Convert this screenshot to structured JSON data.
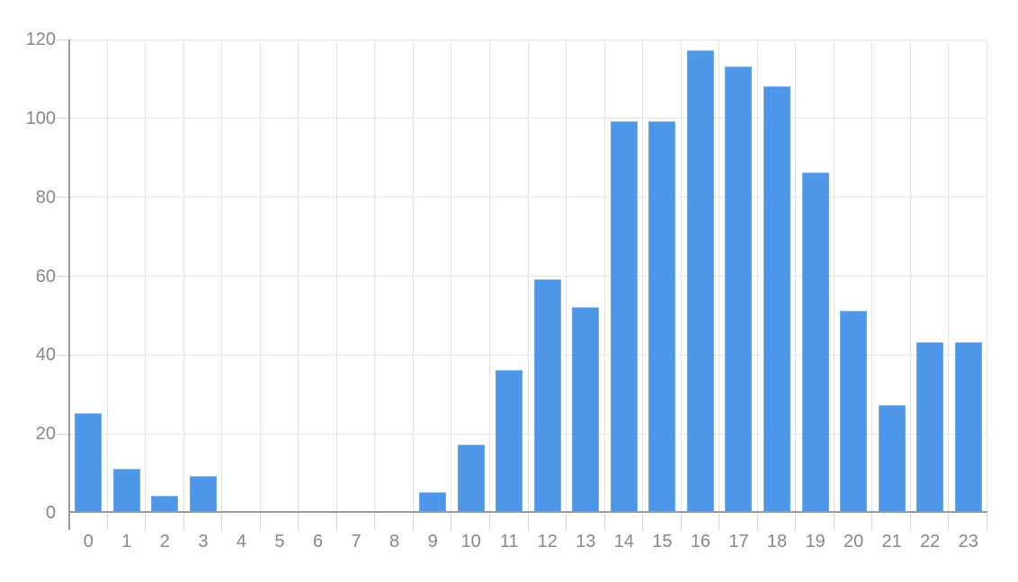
{
  "chart_data": {
    "type": "bar",
    "title": "",
    "xlabel": "",
    "ylabel": "",
    "categories": [
      "0",
      "1",
      "2",
      "3",
      "4",
      "5",
      "6",
      "7",
      "8",
      "9",
      "10",
      "11",
      "12",
      "13",
      "14",
      "15",
      "16",
      "17",
      "18",
      "19",
      "20",
      "21",
      "22",
      "23"
    ],
    "values": [
      25,
      11,
      4,
      9,
      0,
      0,
      0,
      0,
      0,
      5,
      17,
      36,
      59,
      52,
      99,
      99,
      117,
      113,
      108,
      86,
      51,
      27,
      43,
      43
    ],
    "ylim": [
      0,
      120
    ],
    "y_ticks": [
      0,
      20,
      40,
      60,
      80,
      100,
      120
    ],
    "grid": true,
    "legend_position": "none",
    "colors": {
      "bar_fill": "#4d96e8",
      "gridline": "#e4e4e4",
      "tick": "#d2d2d2",
      "axis": "#9a9a9a",
      "label_text": "#878787",
      "background": "#ffffff"
    }
  }
}
